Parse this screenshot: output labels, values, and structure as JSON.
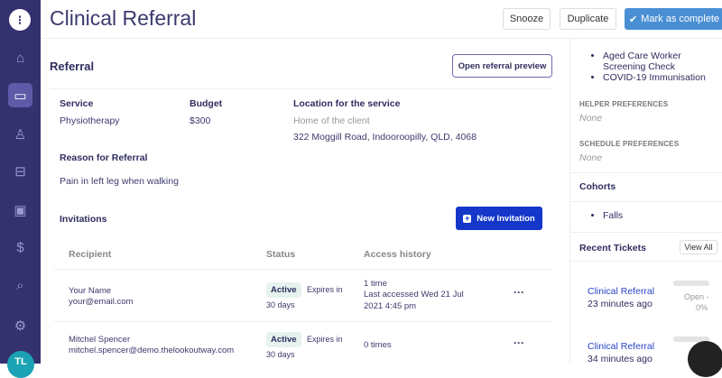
{
  "app": {
    "avatar_initials": "TL"
  },
  "sidebar": {
    "items": [
      {
        "name": "home",
        "icon": "⌂"
      },
      {
        "name": "inbox",
        "icon": "▭",
        "active": true
      },
      {
        "name": "person",
        "icon": "♙"
      },
      {
        "name": "store",
        "icon": "⊟"
      },
      {
        "name": "calendar",
        "icon": "▣"
      },
      {
        "name": "dollar",
        "icon": "$"
      },
      {
        "name": "search",
        "icon": "⌕"
      },
      {
        "name": "settings",
        "icon": "⚙"
      }
    ]
  },
  "header": {
    "title": "Clinical Referral",
    "snooze": "Snooze",
    "duplicate": "Duplicate",
    "complete": "Mark as complete",
    "accent": "#4a8fd4"
  },
  "referral": {
    "heading": "Referral",
    "preview_button": "Open referral preview",
    "service_label": "Service",
    "service": "Physiotherapy",
    "budget_label": "Budget",
    "budget": "$300",
    "location_label": "Location for the service",
    "location_type": "Home of the client",
    "address": "322 Moggill Road, Indooroopilly, QLD, 4068",
    "reason_label": "Reason for Referral",
    "reason": "Pain in left leg when walking"
  },
  "invitations": {
    "heading": "Invitations",
    "new_button": "New Invitation",
    "columns": [
      "Recipient",
      "Status",
      "Access history"
    ],
    "rows": [
      {
        "name": "Your Name",
        "email": "your@email.com",
        "status": "Active",
        "expires_label": "Expires in",
        "expires": "30 days",
        "access1": "1 time",
        "access2": "Last accessed Wed 21 Jul",
        "access3": "2021 4:45 pm"
      },
      {
        "name": "Mitchel Spencer",
        "email": "mitchel.spencer@demo.thelookoutway.com",
        "status": "Active",
        "expires_label": "Expires in",
        "expires": "30 days",
        "access1": "0 times",
        "access2": "",
        "access3": ""
      }
    ]
  },
  "right": {
    "checks": [
      "Aged Care Worker Screening Check",
      "COVID-19 Immunisation"
    ],
    "helper_label": "HELPER PREFERENCES",
    "helper": "None",
    "schedule_label": "SCHEDULE PREFERENCES",
    "schedule": "None",
    "cohorts_heading": "Cohorts",
    "cohorts": [
      "Falls"
    ],
    "tickets_heading": "Recent Tickets",
    "view_all": "View All",
    "tickets": [
      {
        "title": "Clinical Referral",
        "time": "23 minutes ago",
        "status": "Open -",
        "progress": "0%"
      },
      {
        "title": "Clinical Referral",
        "time": "34 minutes ago",
        "status": "",
        "progress": ""
      }
    ]
  }
}
